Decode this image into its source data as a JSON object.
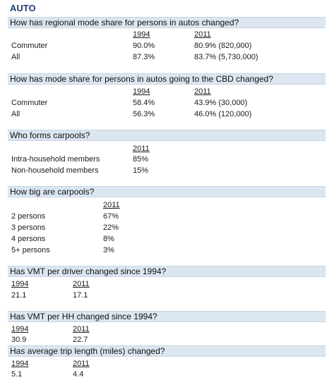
{
  "title": "AUTO",
  "sections": [
    {
      "question": "How has regional mode share for persons in autos changed?",
      "headers": [
        "1994",
        "2011"
      ],
      "rows": [
        {
          "label": "Commuter",
          "v1": "90.0%",
          "v2": "80.9% (820,000)"
        },
        {
          "label": "All",
          "v1": "87.3%",
          "v2": "83.7% (5,730,000)"
        }
      ]
    },
    {
      "question": "How has mode share for persons in autos going to the CBD changed?",
      "headers": [
        "1994",
        "2011"
      ],
      "rows": [
        {
          "label": "Commuter",
          "v1": "58.4%",
          "v2": "43.9% (30,000)"
        },
        {
          "label": "All",
          "v1": "56.3%",
          "v2": "46.0% (120,000)"
        }
      ]
    },
    {
      "question": "Who forms carpools?",
      "headers": [
        "2011"
      ],
      "rows": [
        {
          "label": "Intra-household members",
          "v1": "85%"
        },
        {
          "label": "Non-household members",
          "v1": "15%"
        }
      ]
    },
    {
      "question": "How big are carpools?",
      "headers": [
        "2011"
      ],
      "rows": [
        {
          "label": "2 persons",
          "v1": "67%"
        },
        {
          "label": "3 persons",
          "v1": "22%"
        },
        {
          "label": "4 persons",
          "v1": "8%"
        },
        {
          "label": "5+ persons",
          "v1": "3%"
        }
      ]
    },
    {
      "question": "Has VMT per driver changed since 1994?",
      "headers": [
        "1994",
        "2011"
      ],
      "values": [
        "21.1",
        "17.1"
      ]
    },
    {
      "question": "Has VMT per HH changed since 1994?",
      "headers": [
        "1994",
        "2011"
      ],
      "values": [
        "30.9",
        "22.7"
      ]
    },
    {
      "question": "Has average trip length (miles) changed?",
      "headers": [
        "1994",
        "2011"
      ],
      "values": [
        "5.1",
        "4.4"
      ]
    }
  ]
}
